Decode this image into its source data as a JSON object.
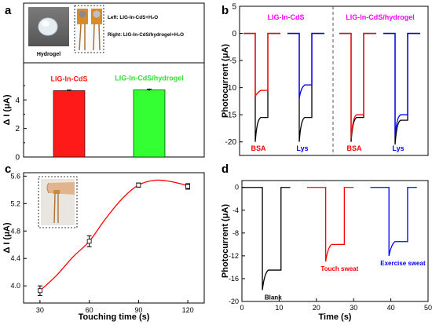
{
  "chart_data": [
    {
      "panel": "a",
      "type": "bar",
      "categories": [
        "LIG-In-CdS",
        "LIG-In-CdS/hydrogel"
      ],
      "values": [
        4.65,
        4.7
      ],
      "errors": [
        0.04,
        0.06
      ],
      "colors": [
        "#ff1a1a",
        "#33ff33"
      ],
      "label_colors": [
        "#ff1a1a",
        "#33dd33"
      ],
      "ylabel": "Δ I (μA)",
      "ylim": [
        0,
        6.6
      ],
      "yticks": [
        0,
        2,
        4
      ],
      "inset": {
        "hydrogel_label": "Hydrogel",
        "legend_left": "Left: LIG-In-CdS+H₂O",
        "legend_right": "Right: LIG-In-CdS/hydrogel+H₂O"
      }
    },
    {
      "panel": "b",
      "type": "line",
      "ylabel": "Photocurrent (μA)",
      "ylim": [
        -22.5,
        5
      ],
      "yticks": [
        5,
        0,
        -5,
        -10,
        -15,
        -20
      ],
      "group_titles": [
        {
          "text": "LIG-In-CdS",
          "color": "#ff00ff"
        },
        {
          "text": "LIG-In-CdS/hydrogel",
          "color": "#ff00ff"
        }
      ],
      "divider": "dashed",
      "pulses": [
        {
          "label": "BSA",
          "label_color": "#ff0000",
          "group": 0,
          "series": [
            {
              "color": "#000000",
              "on": -20,
              "plateau": -15.5
            },
            {
              "color": "#ff0000",
              "on": -11.5,
              "plateau": -10.5
            }
          ]
        },
        {
          "label": "Lys",
          "label_color": "#0000ff",
          "group": 0,
          "series": [
            {
              "color": "#000000",
              "on": -20,
              "plateau": -15.5
            },
            {
              "color": "#0000ff",
              "on": -12,
              "plateau": -9.5
            }
          ]
        },
        {
          "label": "BSA",
          "label_color": "#ff0000",
          "group": 1,
          "series": [
            {
              "color": "#000000",
              "on": -20,
              "plateau": -15.5
            },
            {
              "color": "#ff0000",
              "on": -19.5,
              "plateau": -15
            }
          ]
        },
        {
          "label": "Lys",
          "label_color": "#0000ff",
          "group": 1,
          "series": [
            {
              "color": "#000000",
              "on": -20.5,
              "plateau": -16
            },
            {
              "color": "#0000ff",
              "on": -19,
              "plateau": -15
            }
          ]
        }
      ]
    },
    {
      "panel": "c",
      "type": "line",
      "x": [
        30,
        60,
        90,
        120
      ],
      "y": [
        3.93,
        4.65,
        5.47,
        5.45
      ],
      "errors": [
        0.07,
        0.08,
        0.03,
        0.04
      ],
      "fit_curve": [
        [
          30,
          3.93
        ],
        [
          40,
          4.15
        ],
        [
          50,
          4.42
        ],
        [
          60,
          4.65
        ],
        [
          70,
          4.98
        ],
        [
          80,
          5.27
        ],
        [
          90,
          5.47
        ],
        [
          100,
          5.54
        ],
        [
          110,
          5.52
        ],
        [
          120,
          5.46
        ]
      ],
      "line_color": "#ff0000",
      "xlabel": "Touching time (s)",
      "ylabel": "Δ I (μA)",
      "xlim": [
        20,
        130
      ],
      "ylim": [
        3.75,
        5.65
      ],
      "xticks": [
        30,
        60,
        90,
        120
      ],
      "yticks": [
        4.0,
        4.4,
        4.8,
        5.2,
        5.6
      ],
      "ytick_labels": [
        "4.0",
        "4.4",
        "4.8",
        "5.2",
        "5.6"
      ]
    },
    {
      "panel": "d",
      "type": "line",
      "xlabel": "Time (s)",
      "ylabel": "Photocurrent (μA)",
      "xlim": [
        0,
        50
      ],
      "ylim": [
        -20,
        1.2
      ],
      "xticks": [
        0,
        10,
        20,
        30,
        40,
        50
      ],
      "yticks": [
        0,
        -4,
        -8,
        -12,
        -16,
        -20
      ],
      "series": [
        {
          "label": "Blank",
          "color": "#000000",
          "start": 0,
          "on": 5.5,
          "off": 10.5,
          "end": 13,
          "peak": -18,
          "plateau": -14.5
        },
        {
          "label": "Touch sweat",
          "color": "#ff0000",
          "start": 17.5,
          "on": 22.5,
          "off": 27.5,
          "end": 30,
          "peak": -13,
          "plateau": -10
        },
        {
          "label": "Exercise sweat",
          "color": "#0000ff",
          "start": 34.5,
          "on": 39.5,
          "off": 44.5,
          "end": 47,
          "peak": -12,
          "plateau": -9.5
        }
      ]
    }
  ]
}
